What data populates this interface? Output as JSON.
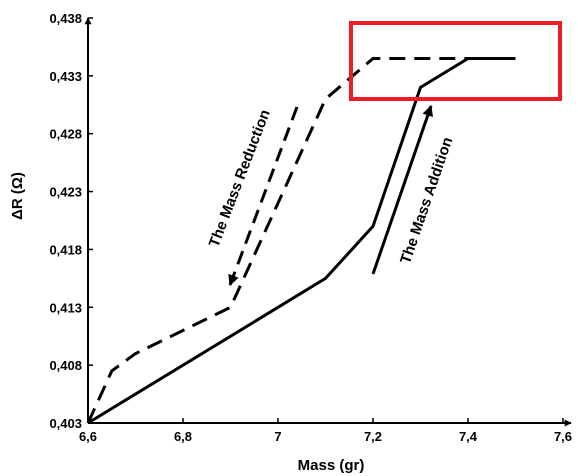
{
  "chart_data": {
    "type": "line",
    "title": "",
    "xlabel": "Mass (gr)",
    "ylabel": "ΔR (Ω)",
    "xlim": [
      6.6,
      7.6
    ],
    "ylim": [
      0.403,
      0.438
    ],
    "x_ticks": [
      6.6,
      6.8,
      7.0,
      7.2,
      7.4,
      7.6
    ],
    "x_tick_labels": [
      "6,6",
      "6,8",
      "7",
      "7,2",
      "7,4",
      "7,6"
    ],
    "y_ticks": [
      0.403,
      0.408,
      0.413,
      0.418,
      0.423,
      0.428,
      0.433,
      0.438
    ],
    "y_tick_labels": [
      "0,403",
      "0,408",
      "0,413",
      "0,418",
      "0,423",
      "0,428",
      "0,433",
      "0,438"
    ],
    "grid": false,
    "series": [
      {
        "style": "solid",
        "color": "#000000",
        "x": [
          6.6,
          7.1,
          7.2,
          7.3,
          7.4,
          7.5
        ],
        "y": [
          0.403,
          0.4155,
          0.42,
          0.432,
          0.4345,
          0.4345
        ]
      },
      {
        "style": "dashed",
        "color": "#000000",
        "x": [
          6.6,
          6.65,
          6.7,
          6.9,
          7.1,
          7.2,
          7.3,
          7.4,
          7.5
        ],
        "y": [
          0.403,
          0.4075,
          0.409,
          0.413,
          0.431,
          0.4345,
          0.4345,
          0.4345,
          0.4345
        ]
      }
    ],
    "annotations": [
      {
        "id": "mass-reduction",
        "text": "The Mass Reduction"
      },
      {
        "id": "mass-addition",
        "text": "The Mass Addition"
      }
    ],
    "highlight_color": "#ee1c24"
  }
}
